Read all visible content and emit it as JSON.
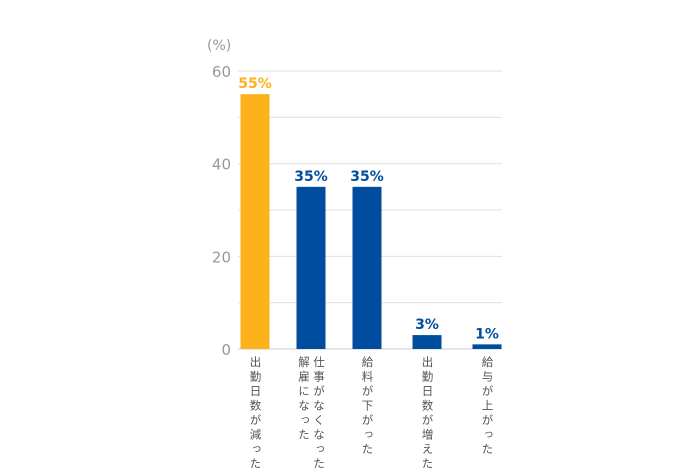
{
  "chart_data": {
    "type": "bar",
    "ylabel": "(%)",
    "ylim": [
      0,
      60
    ],
    "yticks": [
      0,
      20,
      40,
      60
    ],
    "grid": true,
    "categories": [
      "出勤日数が減った",
      "仕事がなくなった\n解雇になった",
      "給料が下がった",
      "出勤日数が増えた",
      "給与が上がった"
    ],
    "values": [
      55,
      35,
      35,
      3,
      1
    ],
    "data_labels": [
      "55%",
      "35%",
      "35%",
      "3%",
      "1%"
    ],
    "colors": [
      "#FDB11B",
      "#004DA0",
      "#004DA0",
      "#004DA0",
      "#004DA0"
    ],
    "tick_color": "#999999",
    "grid_color": "#E0E0E0"
  }
}
